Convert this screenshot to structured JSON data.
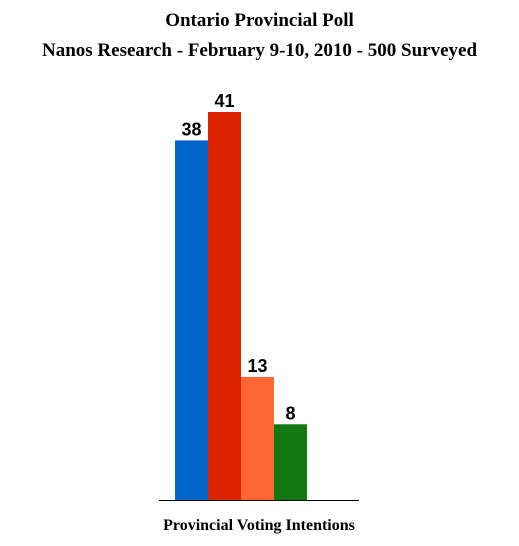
{
  "chart_data": {
    "type": "bar",
    "title": "Ontario Provincial Poll",
    "subtitle": "Nanos Research - February 9-10, 2010 - 500 Surveyed",
    "xlabel": "Provincial Voting Intentions",
    "ylabel": "",
    "categories": [
      "Provincial Voting Intentions"
    ],
    "series": [
      {
        "values": [
          38
        ],
        "color": "#0066cc"
      },
      {
        "values": [
          41
        ],
        "color": "#dd2200"
      },
      {
        "values": [
          13
        ],
        "color": "#ff6633"
      },
      {
        "values": [
          8
        ],
        "color": "#117711"
      }
    ],
    "ylim": [
      0,
      41
    ],
    "grid": false,
    "legend": "none"
  }
}
